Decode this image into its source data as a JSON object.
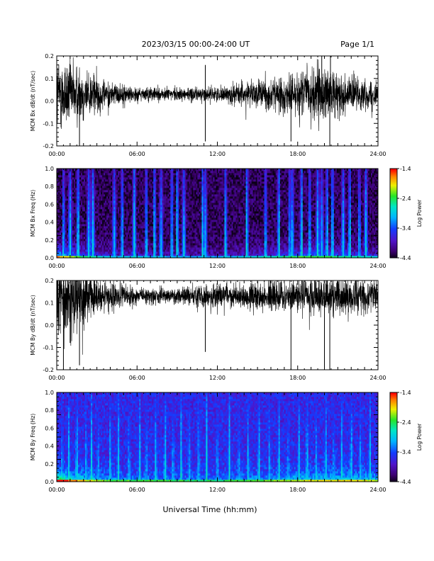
{
  "header": {
    "title": "2023/03/15  00:00-24:00 UT",
    "page": "Page 1/1"
  },
  "colorbar": {
    "label": "Log Power",
    "ticks": [
      "-1.4",
      "-2.4",
      "-3.4",
      "-4.4"
    ],
    "range": [
      -4.4,
      -1.4
    ]
  },
  "chart_data": [
    {
      "type": "line",
      "ylabel": "MCM Bx dB/dt (nT/sec)",
      "xlabel": "",
      "xlim": [
        0,
        24
      ],
      "ylim": [
        -0.2,
        0.2
      ],
      "x_ticks": [
        "00:00",
        "06:00",
        "12:00",
        "18:00",
        "24:00"
      ],
      "y_ticks": [
        "0.2",
        "0.1",
        "0.0",
        "-0.1",
        "-0.2"
      ],
      "baseline": 0.03,
      "amplitude_envelope_nT_per_sec": [
        [
          0.0,
          0.11
        ],
        [
          2.0,
          0.08
        ],
        [
          3.5,
          0.04
        ],
        [
          6.0,
          0.02
        ],
        [
          9.0,
          0.02
        ],
        [
          12.0,
          0.02
        ],
        [
          14.0,
          0.035
        ],
        [
          16.0,
          0.045
        ],
        [
          18.0,
          0.06
        ],
        [
          19.5,
          0.09
        ],
        [
          21.0,
          0.06
        ],
        [
          24.0,
          0.03
        ]
      ],
      "spikes": [
        {
          "time": 1.7,
          "value": -0.2
        },
        {
          "time": 11.1,
          "value": 0.16
        },
        {
          "time": 11.1,
          "value": -0.18
        },
        {
          "time": 17.5,
          "value": -0.18
        },
        {
          "time": 19.8,
          "value": 0.2
        },
        {
          "time": 20.4,
          "value": -0.2
        },
        {
          "time": 20.45,
          "value": 0.2
        }
      ]
    },
    {
      "type": "heatmap",
      "ylabel": "MCM Bx Freq (Hz)",
      "xlabel": "",
      "xlim": [
        0,
        24
      ],
      "ylim": [
        0.0,
        1.0
      ],
      "x_ticks": [
        "00:00",
        "06:00",
        "12:00",
        "18:00",
        "24:00"
      ],
      "y_ticks": [
        "1.0",
        "0.8",
        "0.6",
        "0.4",
        "0.2",
        "0.0"
      ],
      "value_range_log_power": [
        -4.4,
        -1.4
      ],
      "background_log_power": -4.2,
      "low_frequency_activity": [
        [
          0.0,
          -2.4
        ],
        [
          2.0,
          -3.2
        ],
        [
          4.0,
          -3.6
        ],
        [
          8.0,
          -3.8
        ],
        [
          12.0,
          -3.8
        ],
        [
          16.0,
          -3.4
        ],
        [
          19.0,
          -3.0
        ],
        [
          22.0,
          -3.3
        ],
        [
          24.0,
          -3.6
        ]
      ],
      "broadband_events_hours": [
        0.5,
        1.0,
        1.6,
        2.4,
        2.7,
        4.3,
        4.9,
        5.8,
        6.7,
        7.3,
        7.8,
        8.6,
        9.0,
        9.5,
        10.9,
        11.1,
        12.6,
        14.2,
        15.6,
        16.6,
        17.4,
        17.6,
        18.3,
        18.9,
        19.5,
        19.8,
        20.2,
        20.6,
        21.4,
        21.9,
        22.6,
        23.1
      ]
    },
    {
      "type": "line",
      "ylabel": "MCM By dB/dt (nT/sec)",
      "xlabel": "",
      "xlim": [
        0,
        24
      ],
      "ylim": [
        -0.2,
        0.2
      ],
      "x_ticks": [
        "00:00",
        "06:00",
        "12:00",
        "18:00",
        "24:00"
      ],
      "y_ticks": [
        "0.2",
        "0.1",
        "0.0",
        "-0.1",
        "-0.2"
      ],
      "baseline": 0.13,
      "amplitude_envelope_nT_per_sec": [
        [
          0.0,
          0.12
        ],
        [
          1.5,
          0.1
        ],
        [
          3.0,
          0.05
        ],
        [
          6.0,
          0.025
        ],
        [
          9.0,
          0.025
        ],
        [
          12.0,
          0.035
        ],
        [
          15.0,
          0.04
        ],
        [
          18.0,
          0.05
        ],
        [
          20.0,
          0.06
        ],
        [
          22.0,
          0.05
        ],
        [
          24.0,
          0.04
        ]
      ],
      "spikes": [
        {
          "time": 0.5,
          "value": -0.2
        },
        {
          "time": 1.0,
          "value": -0.08
        },
        {
          "time": 1.7,
          "value": -0.18
        },
        {
          "time": 11.1,
          "value": -0.12
        },
        {
          "time": 17.5,
          "value": -0.2
        },
        {
          "time": 20.0,
          "value": -0.2
        },
        {
          "time": 20.4,
          "value": -0.2
        }
      ]
    },
    {
      "type": "heatmap",
      "ylabel": "MCM By Freq (Hz)",
      "xlabel": "Universal Time (hh:mm)",
      "xlim": [
        0,
        24
      ],
      "ylim": [
        0.0,
        1.0
      ],
      "x_ticks": [
        "00:00",
        "06:00",
        "12:00",
        "18:00",
        "24:00"
      ],
      "y_ticks": [
        "1.0",
        "0.8",
        "0.6",
        "0.4",
        "0.2",
        "0.0"
      ],
      "value_range_log_power": [
        -4.4,
        -1.4
      ],
      "background_log_power": -3.6,
      "low_frequency_activity": [
        [
          0.0,
          -2.0
        ],
        [
          2.0,
          -2.6
        ],
        [
          4.0,
          -3.0
        ],
        [
          8.0,
          -3.1
        ],
        [
          12.0,
          -3.2
        ],
        [
          16.0,
          -2.9
        ],
        [
          19.0,
          -2.7
        ],
        [
          22.0,
          -2.6
        ],
        [
          24.0,
          -2.8
        ]
      ],
      "broadband_events_hours": [
        0.4,
        0.9,
        1.5,
        2.2,
        2.6,
        3.1,
        4.0,
        4.6,
        5.4,
        6.2,
        6.7,
        7.4,
        8.1,
        8.7,
        9.3,
        9.9,
        10.6,
        11.2,
        12.0,
        12.9,
        13.6,
        14.3,
        15.1,
        15.9,
        16.6,
        17.3,
        18.1,
        18.7,
        19.4,
        20.1,
        20.7,
        21.3,
        22.0,
        22.7,
        23.4
      ]
    }
  ]
}
